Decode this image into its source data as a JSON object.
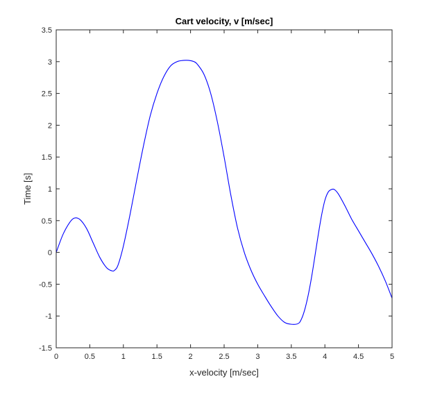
{
  "chart_data": {
    "type": "line",
    "title": "Cart velocity, v [m/sec]",
    "xlabel": "x-velocity [m/sec]",
    "ylabel": "Time [s]",
    "xlim": [
      0,
      5
    ],
    "ylim": [
      -1.5,
      3.5
    ],
    "xticks": [
      "0",
      "0.5",
      "1",
      "1.5",
      "2",
      "2.5",
      "3",
      "3.5",
      "4",
      "4.5",
      "5"
    ],
    "yticks": [
      "-1.5",
      "-1",
      "-0.5",
      "0",
      "0.5",
      "1",
      "1.5",
      "2",
      "2.5",
      "3",
      "3.5"
    ],
    "grid": false,
    "line_color": "#0000ff",
    "series": [
      {
        "x": [
          0,
          0.1,
          0.2,
          0.27,
          0.35,
          0.45,
          0.55,
          0.65,
          0.75,
          0.83,
          0.87,
          0.92,
          1.0,
          1.1,
          1.2,
          1.3,
          1.4,
          1.5,
          1.6,
          1.7,
          1.8,
          1.9,
          1.97,
          2.05,
          2.1,
          2.2,
          2.3,
          2.4,
          2.5,
          2.6,
          2.7,
          2.8,
          2.9,
          3.0,
          3.1,
          3.2,
          3.3,
          3.4,
          3.5,
          3.6,
          3.65,
          3.7,
          3.75,
          3.8,
          3.85,
          3.9,
          3.95,
          4.0,
          4.05,
          4.1,
          4.14,
          4.2,
          4.3,
          4.4,
          4.5,
          4.6,
          4.7,
          4.8,
          4.9,
          5.0
        ],
        "y": [
          0.0,
          0.28,
          0.47,
          0.54,
          0.52,
          0.38,
          0.15,
          -0.08,
          -0.24,
          -0.29,
          -0.28,
          -0.2,
          0.1,
          0.6,
          1.15,
          1.68,
          2.15,
          2.5,
          2.76,
          2.93,
          3.0,
          3.02,
          3.02,
          3.0,
          2.96,
          2.8,
          2.5,
          2.05,
          1.5,
          0.9,
          0.38,
          0.0,
          -0.28,
          -0.5,
          -0.68,
          -0.85,
          -1.0,
          -1.1,
          -1.13,
          -1.12,
          -1.05,
          -0.9,
          -0.68,
          -0.4,
          -0.07,
          0.27,
          0.58,
          0.82,
          0.95,
          0.99,
          0.99,
          0.92,
          0.73,
          0.52,
          0.34,
          0.16,
          -0.02,
          -0.22,
          -0.45,
          -0.72
        ]
      }
    ]
  }
}
